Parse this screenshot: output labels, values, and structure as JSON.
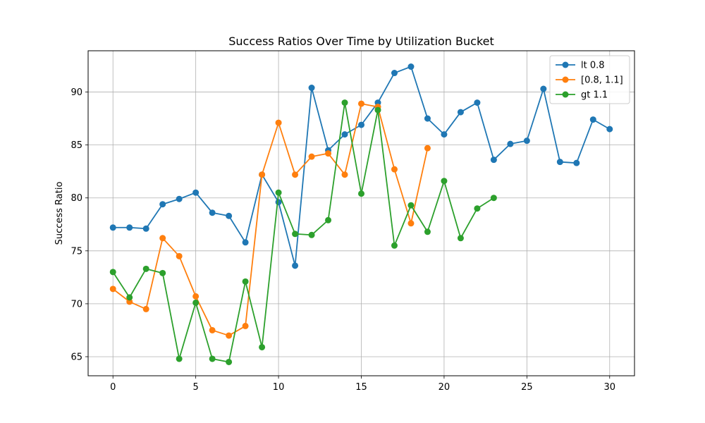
{
  "chart_data": {
    "type": "line",
    "title": "Success Ratios Over Time by Utilization Bucket",
    "xlabel": "",
    "ylabel": "Success Ratio",
    "xlim": [
      -1.5,
      31.5
    ],
    "ylim": [
      63.2,
      93.9
    ],
    "xticks": [
      0,
      5,
      10,
      15,
      20,
      25,
      30
    ],
    "yticks": [
      65,
      70,
      75,
      80,
      85,
      90
    ],
    "grid": true,
    "legend_position": "top-right",
    "series": [
      {
        "name": "lt 0.8",
        "color": "#1f77b4",
        "x": [
          0,
          1,
          2,
          3,
          4,
          5,
          6,
          7,
          8,
          9,
          10,
          11,
          12,
          13,
          14,
          15,
          16,
          17,
          18,
          19,
          20,
          21,
          22,
          23,
          24,
          25,
          26,
          27,
          28,
          29,
          30
        ],
        "values": [
          77.2,
          77.2,
          77.1,
          79.4,
          79.9,
          80.5,
          78.6,
          78.3,
          75.8,
          82.2,
          79.6,
          73.6,
          90.4,
          84.5,
          86.0,
          86.9,
          89.0,
          91.8,
          92.4,
          87.5,
          86.0,
          88.1,
          89.0,
          83.6,
          85.1,
          85.4,
          90.3,
          83.4,
          83.3,
          87.4,
          86.5
        ]
      },
      {
        "name": "[0.8, 1.1]",
        "color": "#ff7f0e",
        "x": [
          0,
          1,
          2,
          3,
          4,
          5,
          6,
          7,
          8,
          9,
          10,
          11,
          12,
          13,
          14,
          15,
          16,
          17,
          18,
          19
        ],
        "values": [
          71.4,
          70.2,
          69.5,
          76.2,
          74.5,
          70.7,
          67.5,
          67.0,
          67.9,
          82.2,
          87.1,
          82.2,
          83.9,
          84.2,
          82.2,
          88.9,
          88.6,
          82.7,
          77.6,
          84.7
        ]
      },
      {
        "name": "gt 1.1",
        "color": "#2ca02c",
        "x": [
          0,
          1,
          2,
          3,
          4,
          5,
          6,
          7,
          8,
          9,
          10,
          11,
          12,
          13,
          14,
          15,
          16,
          17,
          18,
          19,
          20,
          21,
          22,
          23
        ],
        "values": [
          73.0,
          70.6,
          73.3,
          72.9,
          64.8,
          70.1,
          64.8,
          64.5,
          72.1,
          65.9,
          80.5,
          76.6,
          76.5,
          77.9,
          89.0,
          80.4,
          88.3,
          75.5,
          79.3,
          76.8,
          81.6,
          76.2,
          79.0,
          80.0
        ]
      }
    ]
  }
}
